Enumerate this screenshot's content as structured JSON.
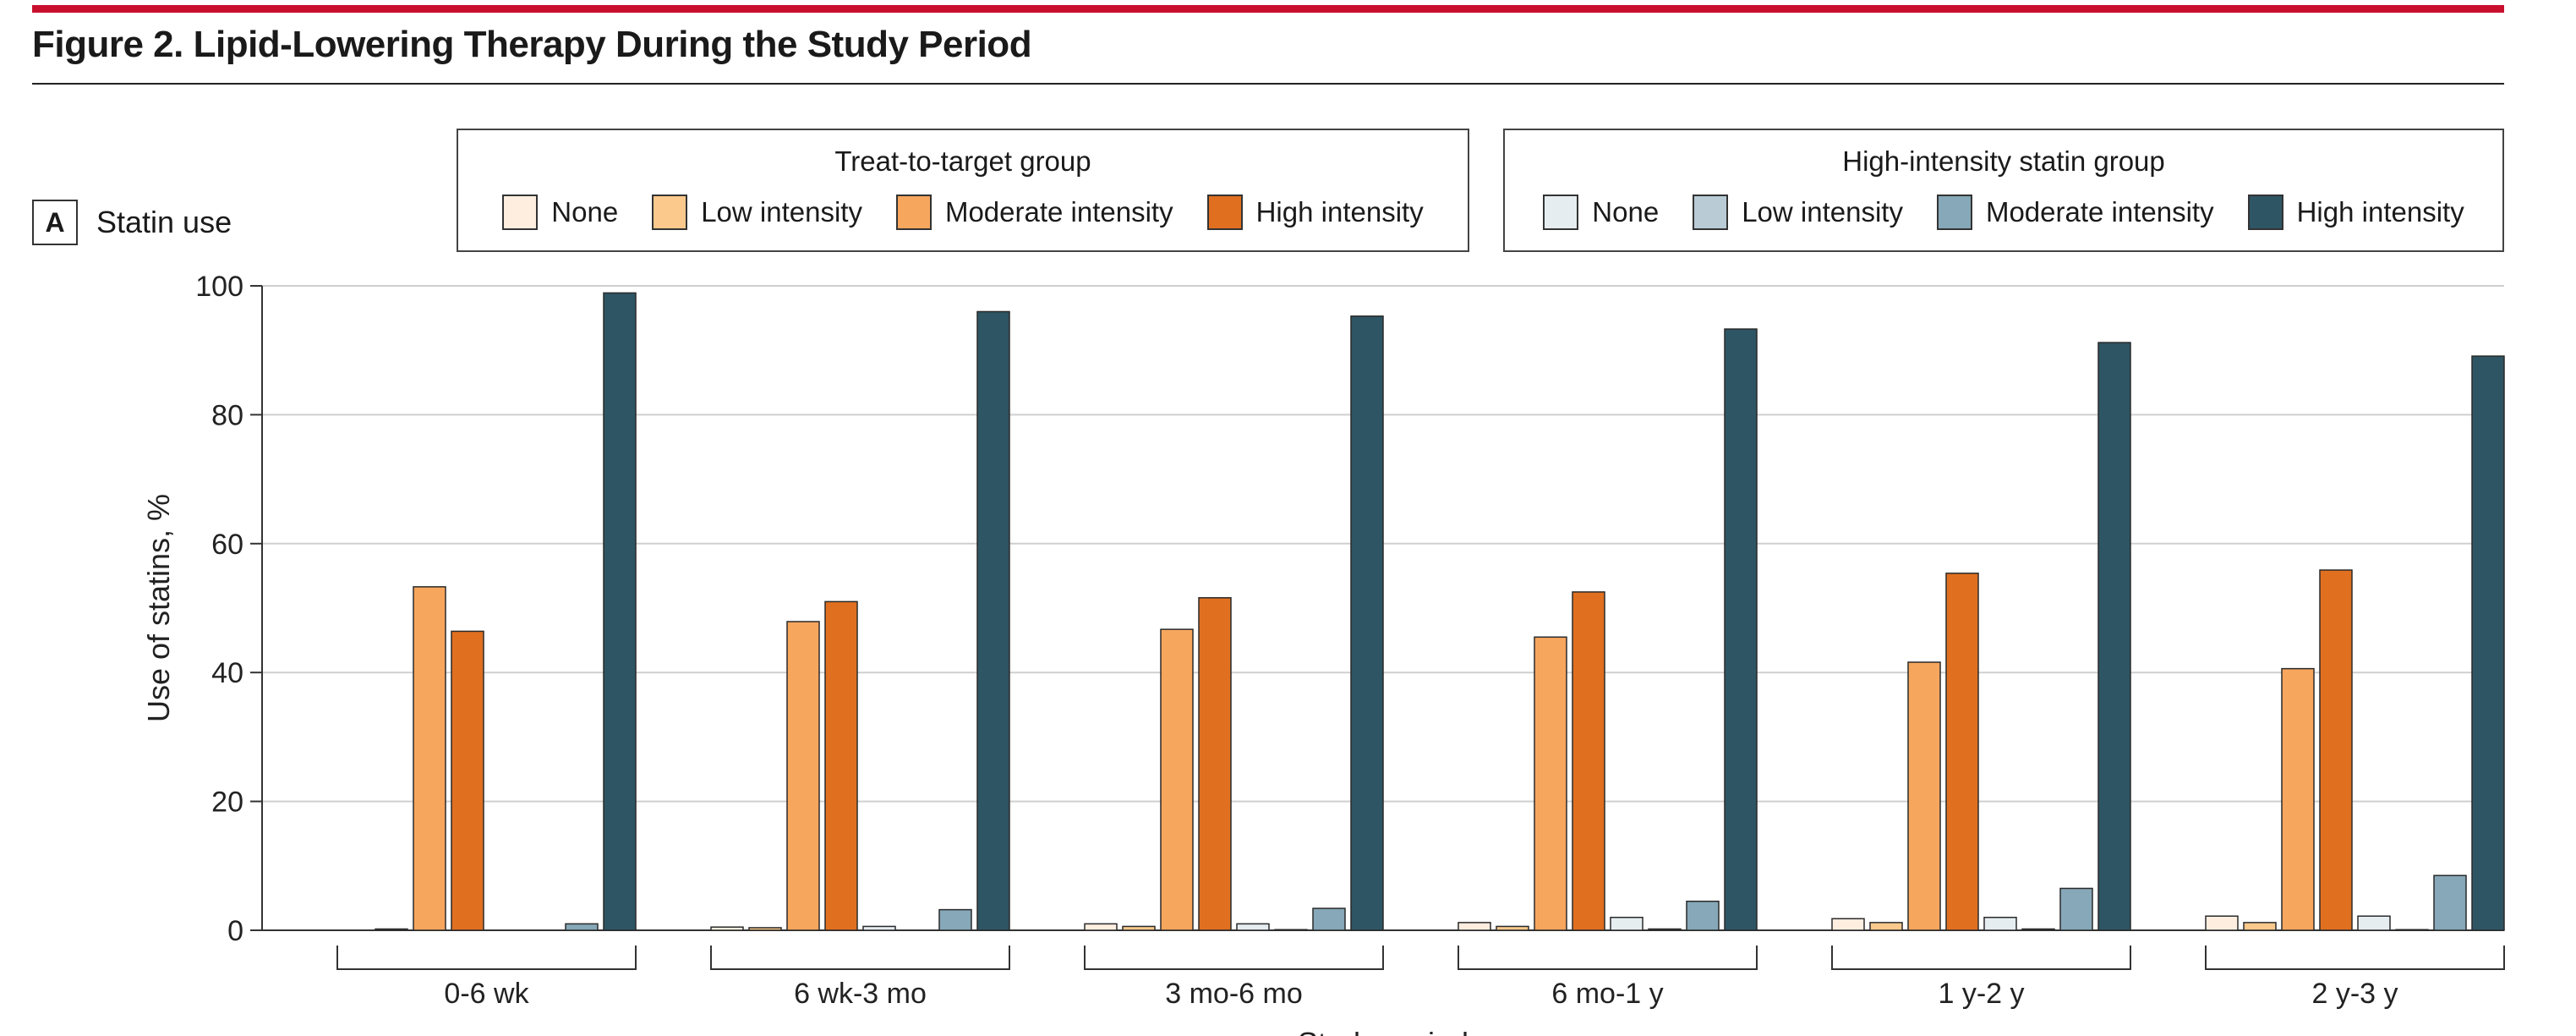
{
  "figure": {
    "title": "Figure 2. Lipid-Lowering Therapy During the Study Period",
    "panel_letter": "A",
    "panel_title": "Statin use",
    "accent_color": "#c8102e"
  },
  "legends": [
    {
      "title": "Treat-to-target group",
      "items": [
        {
          "label": "None",
          "color": "#fdeee0"
        },
        {
          "label": "Low intensity",
          "color": "#fcc98c"
        },
        {
          "label": "Moderate intensity",
          "color": "#f7a65e"
        },
        {
          "label": "High intensity",
          "color": "#e07020"
        }
      ]
    },
    {
      "title": "High-intensity statin group",
      "items": [
        {
          "label": "None",
          "color": "#e6edf1"
        },
        {
          "label": "Low intensity",
          "color": "#b9ccd6"
        },
        {
          "label": "Moderate intensity",
          "color": "#86a8b8"
        },
        {
          "label": "High intensity",
          "color": "#2e5564"
        }
      ]
    }
  ],
  "chart_data": {
    "type": "bar",
    "title": "Statin use",
    "xlabel": "Study period",
    "ylabel": "Use of statins, %",
    "ylim": [
      0,
      100
    ],
    "yticks": [
      0,
      20,
      40,
      60,
      80,
      100
    ],
    "grid": true,
    "legend_placement": "top",
    "categories": [
      "0-6 wk",
      "6 wk-3 mo",
      "3 mo-6 mo",
      "6 mo-1 y",
      "1 y-2 y",
      "2 y-3 y"
    ],
    "series": [
      {
        "name": "None",
        "group": "Treat-to-target group",
        "color": "#fdeee0",
        "values": [
          0,
          0.5,
          1.0,
          1.2,
          1.8,
          2.2
        ]
      },
      {
        "name": "Low intensity",
        "group": "Treat-to-target group",
        "color": "#fcc98c",
        "values": [
          0.2,
          0.4,
          0.6,
          0.6,
          1.2,
          1.2
        ]
      },
      {
        "name": "Moderate intensity",
        "group": "Treat-to-target group",
        "color": "#f7a65e",
        "values": [
          53.3,
          47.9,
          46.7,
          45.5,
          41.6,
          40.6
        ]
      },
      {
        "name": "High intensity",
        "group": "Treat-to-target group",
        "color": "#e07020",
        "values": [
          46.4,
          51.0,
          51.6,
          52.5,
          55.4,
          55.9
        ]
      },
      {
        "name": "None",
        "group": "High-intensity statin group",
        "color": "#e6edf1",
        "values": [
          0,
          0.6,
          1.0,
          2.0,
          2.0,
          2.2
        ]
      },
      {
        "name": "Low intensity",
        "group": "High-intensity statin group",
        "color": "#b9ccd6",
        "values": [
          0,
          0,
          0.1,
          0.2,
          0.2,
          0.1
        ]
      },
      {
        "name": "Moderate intensity",
        "group": "High-intensity statin group",
        "color": "#86a8b8",
        "values": [
          1.0,
          3.2,
          3.4,
          4.5,
          6.5,
          8.5
        ]
      },
      {
        "name": "High intensity",
        "group": "High-intensity statin group",
        "color": "#2e5564",
        "values": [
          98.9,
          96.0,
          95.3,
          93.3,
          91.2,
          89.1
        ]
      }
    ]
  }
}
